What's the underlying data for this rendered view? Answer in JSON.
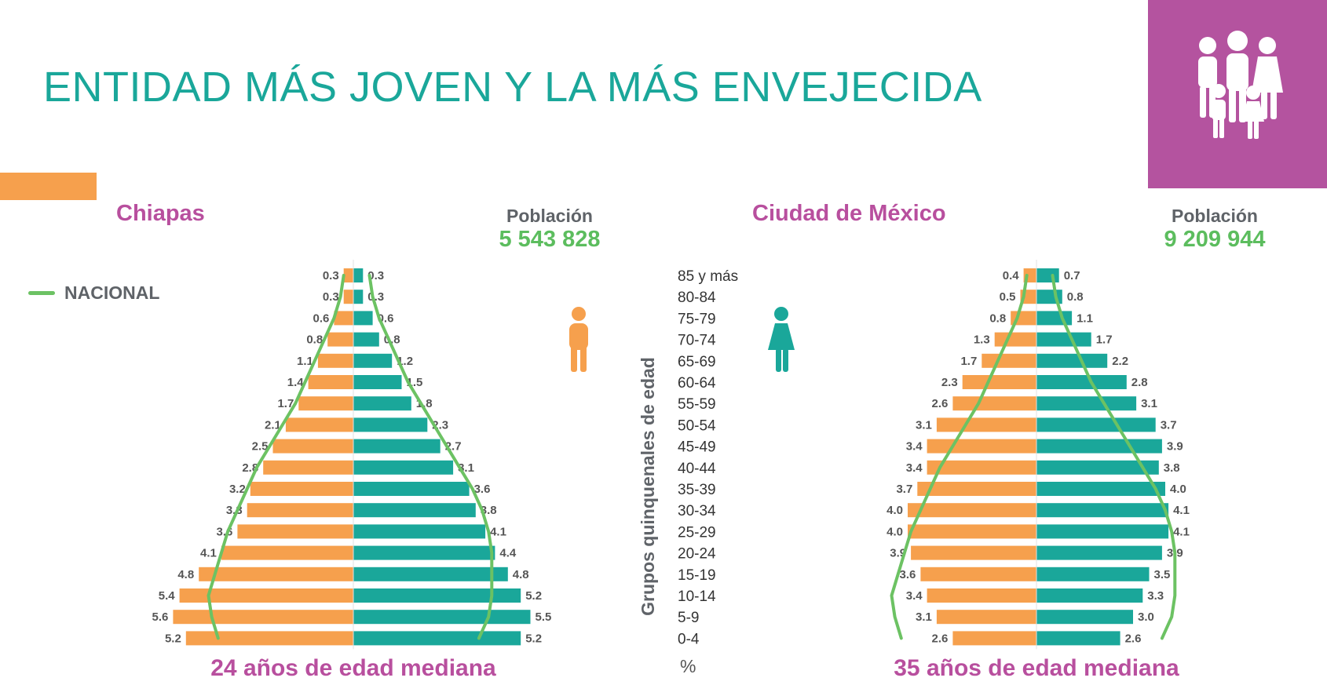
{
  "title": "ENTIDAD MÁS JOVEN Y LA MÁS ENVEJECIDA",
  "legend": {
    "label": "NACIONAL",
    "color": "#6cc263"
  },
  "y_axis_label": "Grupos quinquenales de edad",
  "x_unit": "%",
  "icons": {
    "men": "man-icon",
    "women": "woman-icon",
    "family": "family-icon"
  },
  "colors": {
    "men": "#f6a04d",
    "women": "#1aa79a",
    "title": "#1aa79a",
    "state": "#b84f9e",
    "population": "#5cbd5e",
    "brand_box": "#b4539f"
  },
  "chart_data": [
    {
      "type": "bar",
      "subtype": "population-pyramid",
      "name": "Chiapas",
      "population_label": "Población",
      "population": "5 543 828",
      "median_label": "24 años de edad mediana",
      "categories": [
        "85 y más",
        "80-84",
        "75-79",
        "70-74",
        "65-69",
        "60-64",
        "55-59",
        "50-54",
        "45-49",
        "40-44",
        "35-39",
        "30-34",
        "25-29",
        "20-24",
        "15-19",
        "10-14",
        "5-9",
        "0-4"
      ],
      "series": [
        {
          "values": [
            0.3,
            0.3,
            0.6,
            0.8,
            1.1,
            1.4,
            1.7,
            2.1,
            2.5,
            2.8,
            3.2,
            3.3,
            3.6,
            4.1,
            4.8,
            5.4,
            5.6,
            5.2
          ]
        },
        {
          "values": [
            0.3,
            0.3,
            0.6,
            0.8,
            1.2,
            1.5,
            1.8,
            2.3,
            2.7,
            3.1,
            3.6,
            3.8,
            4.1,
            4.4,
            4.8,
            5.2,
            5.5,
            5.2
          ]
        }
      ],
      "nacional": {
        "men": [
          0.3,
          0.4,
          0.6,
          0.9,
          1.2,
          1.5,
          1.8,
          2.2,
          2.6,
          3.0,
          3.3,
          3.6,
          3.9,
          4.1,
          4.3,
          4.5,
          4.4,
          4.2
        ],
        "women": [
          0.5,
          0.6,
          0.8,
          1.1,
          1.4,
          1.7,
          2.1,
          2.5,
          2.9,
          3.3,
          3.7,
          4.0,
          4.2,
          4.3,
          4.3,
          4.3,
          4.2,
          3.9
        ]
      }
    },
    {
      "type": "bar",
      "subtype": "population-pyramid",
      "name": "Ciudad de México",
      "population_label": "Población",
      "population": "9 209 944",
      "median_label": "35 años de edad mediana",
      "categories": [
        "85 y más",
        "80-84",
        "75-79",
        "70-74",
        "65-69",
        "60-64",
        "55-59",
        "50-54",
        "45-49",
        "40-44",
        "35-39",
        "30-34",
        "25-29",
        "20-24",
        "15-19",
        "10-14",
        "5-9",
        "0-4"
      ],
      "series": [
        {
          "values": [
            0.4,
            0.5,
            0.8,
            1.3,
            1.7,
            2.3,
            2.6,
            3.1,
            3.4,
            3.4,
            3.7,
            4.0,
            4.0,
            3.9,
            3.6,
            3.4,
            3.1,
            2.6
          ]
        },
        {
          "values": [
            0.7,
            0.8,
            1.1,
            1.7,
            2.2,
            2.8,
            3.1,
            3.7,
            3.9,
            3.8,
            4.0,
            4.1,
            4.1,
            3.9,
            3.5,
            3.3,
            3.0,
            2.6
          ]
        }
      ],
      "nacional": {
        "men": [
          0.3,
          0.4,
          0.6,
          0.9,
          1.2,
          1.5,
          1.8,
          2.2,
          2.6,
          3.0,
          3.3,
          3.6,
          3.9,
          4.1,
          4.3,
          4.5,
          4.4,
          4.2
        ],
        "women": [
          0.5,
          0.6,
          0.8,
          1.1,
          1.4,
          1.7,
          2.1,
          2.5,
          2.9,
          3.3,
          3.7,
          4.0,
          4.2,
          4.3,
          4.3,
          4.3,
          4.2,
          3.9
        ]
      }
    }
  ]
}
